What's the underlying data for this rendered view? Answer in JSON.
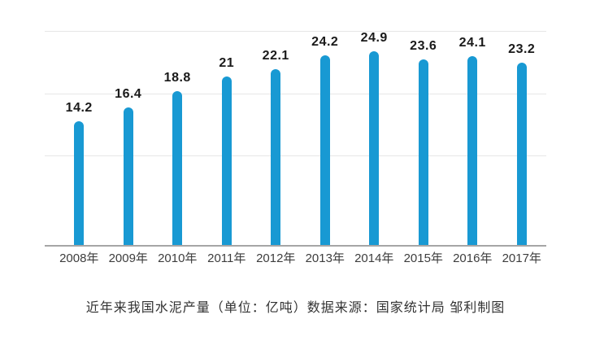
{
  "chart_data": {
    "type": "bar",
    "categories": [
      "2008年",
      "2009年",
      "2010年",
      "2011年",
      "2012年",
      "2013年",
      "2014年",
      "2015年",
      "2016年",
      "2017年"
    ],
    "values": [
      14.2,
      16.4,
      18.8,
      21,
      22.1,
      24.2,
      24.9,
      23.6,
      24.1,
      23.2
    ],
    "value_labels": [
      "14.2",
      "16.4",
      "18.8",
      "21",
      "22.1",
      "24.2",
      "24.9",
      "23.6",
      "24.1",
      "23.2"
    ],
    "title": "近年来我国水泥产量（单位：亿吨）数据来源：国家统计局 邹利制图",
    "xlabel": "",
    "ylabel": "",
    "y_axis_tick_labels_visible": false,
    "legend": "none",
    "grid": true,
    "gridline_count": 3,
    "bar_style": "thin rounded-top lollipop bars"
  },
  "colors": {
    "bar": "#1899d3",
    "gridline": "#e6e6e6",
    "axis_line": "#a6a6a6",
    "value_label": "#1a1a1a",
    "category_label": "#3d3d3d",
    "caption": "#333333",
    "background": "#ffffff"
  },
  "caption": {
    "text": "近年来我国水泥产量（单位：亿吨）数据来源：国家统计局 邹利制图"
  }
}
